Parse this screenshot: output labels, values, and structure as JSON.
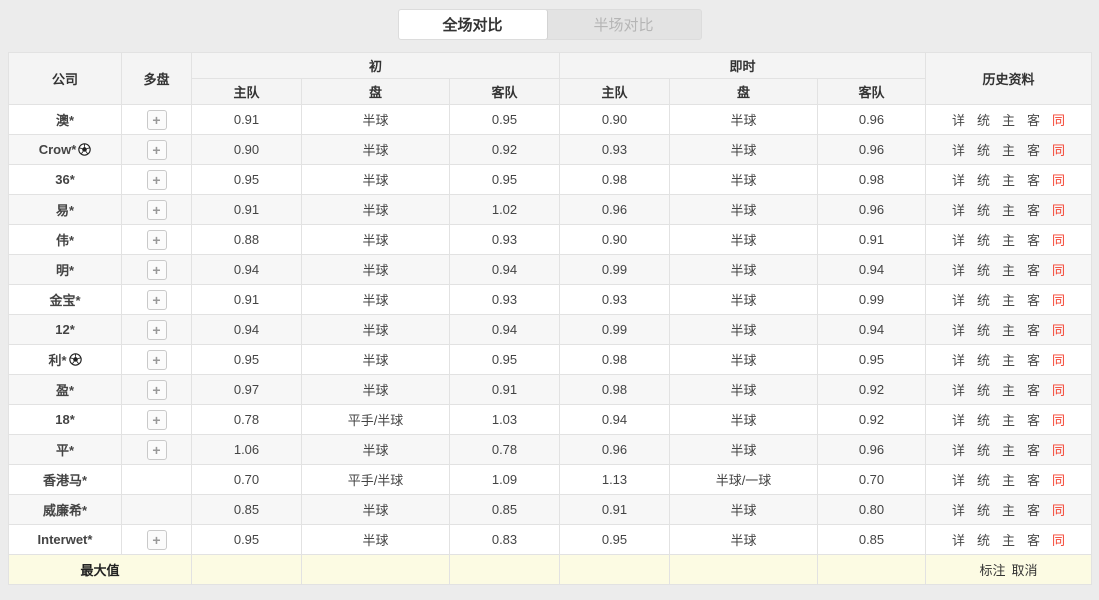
{
  "tabs": [
    {
      "label": "全场对比",
      "active": true
    },
    {
      "label": "半场对比",
      "active": false
    }
  ],
  "table": {
    "header": {
      "company": "公司",
      "multi": "多盘",
      "initial_group": "初",
      "live_group": "即时",
      "history": "历史资料",
      "sub": {
        "home": "主队",
        "handicap": "盘",
        "away": "客队"
      }
    },
    "multi_button_label": "+",
    "history_links": [
      "详",
      "统",
      "主",
      "客",
      "同"
    ],
    "rows": [
      {
        "company": "澳*",
        "soccer_icon": false,
        "multi_button": true,
        "initial": {
          "home": "0.91",
          "handicap": "半球",
          "away": "0.95"
        },
        "live": {
          "home": "0.90",
          "handicap": "半球",
          "away": "0.96"
        }
      },
      {
        "company": "Crow*",
        "soccer_icon": true,
        "multi_button": true,
        "initial": {
          "home": "0.90",
          "handicap": "半球",
          "away": "0.92"
        },
        "live": {
          "home": "0.93",
          "handicap": "半球",
          "away": "0.96"
        }
      },
      {
        "company": "36*",
        "soccer_icon": false,
        "multi_button": true,
        "initial": {
          "home": "0.95",
          "handicap": "半球",
          "away": "0.95"
        },
        "live": {
          "home": "0.98",
          "handicap": "半球",
          "away": "0.98"
        }
      },
      {
        "company": "易*",
        "soccer_icon": false,
        "multi_button": true,
        "initial": {
          "home": "0.91",
          "handicap": "半球",
          "away": "1.02"
        },
        "live": {
          "home": "0.96",
          "handicap": "半球",
          "away": "0.96"
        }
      },
      {
        "company": "伟*",
        "soccer_icon": false,
        "multi_button": true,
        "initial": {
          "home": "0.88",
          "handicap": "半球",
          "away": "0.93"
        },
        "live": {
          "home": "0.90",
          "handicap": "半球",
          "away": "0.91"
        }
      },
      {
        "company": "明*",
        "soccer_icon": false,
        "multi_button": true,
        "initial": {
          "home": "0.94",
          "handicap": "半球",
          "away": "0.94"
        },
        "live": {
          "home": "0.99",
          "handicap": "半球",
          "away": "0.94"
        }
      },
      {
        "company": "金宝*",
        "soccer_icon": false,
        "multi_button": true,
        "initial": {
          "home": "0.91",
          "handicap": "半球",
          "away": "0.93"
        },
        "live": {
          "home": "0.93",
          "handicap": "半球",
          "away": "0.99"
        }
      },
      {
        "company": "12*",
        "soccer_icon": false,
        "multi_button": true,
        "initial": {
          "home": "0.94",
          "handicap": "半球",
          "away": "0.94"
        },
        "live": {
          "home": "0.99",
          "handicap": "半球",
          "away": "0.94"
        }
      },
      {
        "company": "利*",
        "soccer_icon": true,
        "multi_button": true,
        "initial": {
          "home": "0.95",
          "handicap": "半球",
          "away": "0.95"
        },
        "live": {
          "home": "0.98",
          "handicap": "半球",
          "away": "0.95"
        }
      },
      {
        "company": "盈*",
        "soccer_icon": false,
        "multi_button": true,
        "initial": {
          "home": "0.97",
          "handicap": "半球",
          "away": "0.91"
        },
        "live": {
          "home": "0.98",
          "handicap": "半球",
          "away": "0.92"
        }
      },
      {
        "company": "18*",
        "soccer_icon": false,
        "multi_button": true,
        "initial": {
          "home": "0.78",
          "handicap": "平手/半球",
          "away": "1.03"
        },
        "live": {
          "home": "0.94",
          "handicap": "半球",
          "away": "0.92"
        }
      },
      {
        "company": "平*",
        "soccer_icon": false,
        "multi_button": true,
        "initial": {
          "home": "1.06",
          "handicap": "半球",
          "away": "0.78"
        },
        "live": {
          "home": "0.96",
          "handicap": "半球",
          "away": "0.96"
        }
      },
      {
        "company": "香港马*",
        "soccer_icon": false,
        "multi_button": false,
        "initial": {
          "home": "0.70",
          "handicap": "平手/半球",
          "away": "1.09"
        },
        "live": {
          "home": "1.13",
          "handicap": "半球/一球",
          "away": "0.70"
        }
      },
      {
        "company": "威廉希*",
        "soccer_icon": false,
        "multi_button": false,
        "initial": {
          "home": "0.85",
          "handicap": "半球",
          "away": "0.85"
        },
        "live": {
          "home": "0.91",
          "handicap": "半球",
          "away": "0.80"
        }
      },
      {
        "company": "Interwet*",
        "soccer_icon": false,
        "multi_button": true,
        "initial": {
          "home": "0.95",
          "handicap": "半球",
          "away": "0.83"
        },
        "live": {
          "home": "0.95",
          "handicap": "半球",
          "away": "0.85"
        }
      }
    ],
    "footer": {
      "label": "最大值",
      "actions": [
        "标注",
        "取消"
      ]
    }
  },
  "icons": {
    "soccer_ball": "soccer-ball-shape",
    "plus": "+"
  },
  "colors": {
    "accent_red": "#f4402f",
    "page_bg": "#ececec",
    "header_bg": "#f4f4f4",
    "row_alt_bg": "#f7f7f7",
    "footer_bg": "#fcfbe3"
  }
}
